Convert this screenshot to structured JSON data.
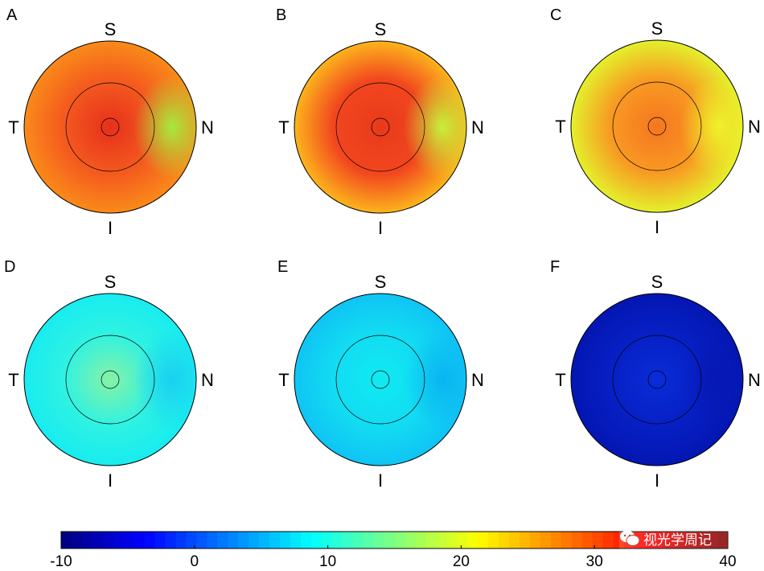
{
  "chart_data": [
    {
      "type": "heatmap",
      "panel": "A",
      "orientation_labels": {
        "top": "S",
        "left": "T",
        "right": "N",
        "bottom": "I"
      },
      "colors": {
        "center": "#e6301c",
        "mid": "#f45a1e",
        "nasal": "#a7ea3c",
        "edge": "#fa8a1a"
      }
    },
    {
      "type": "heatmap",
      "panel": "B",
      "orientation_labels": {
        "top": "S",
        "left": "T",
        "right": "N",
        "bottom": "I"
      },
      "colors": {
        "center": "#e83a1c",
        "mid": "#f2461e",
        "nasal": "#c6f03a",
        "edge": "#fcb41c"
      }
    },
    {
      "type": "heatmap",
      "panel": "C",
      "orientation_labels": {
        "top": "S",
        "left": "T",
        "right": "N",
        "bottom": "I"
      },
      "colors": {
        "center": "#f67620",
        "mid": "#f89a22",
        "nasal": "#eef22a",
        "edge": "#e4f02c"
      }
    },
    {
      "type": "heatmap",
      "panel": "D",
      "orientation_labels": {
        "top": "S",
        "left": "T",
        "right": "N",
        "bottom": "I"
      },
      "colors": {
        "center": "#86f2a6",
        "mid": "#2ef2e2",
        "nasal": "#1ad0f2",
        "edge": "#18ecf0"
      }
    },
    {
      "type": "heatmap",
      "panel": "E",
      "orientation_labels": {
        "top": "S",
        "left": "T",
        "right": "N",
        "bottom": "I"
      },
      "colors": {
        "center": "#10eaf2",
        "mid": "#12dcf2",
        "nasal": "#0ab4f2",
        "edge": "#10c4f4"
      }
    },
    {
      "type": "heatmap",
      "panel": "F",
      "orientation_labels": {
        "top": "S",
        "left": "T",
        "right": "N",
        "bottom": "I"
      },
      "colors": {
        "center": "#0a2cd8",
        "mid": "#0620c4",
        "nasal": "#0618b4",
        "edge": "#0416b2"
      }
    }
  ],
  "colorbar": {
    "min": -10,
    "max": 40,
    "tick_values": [
      -10,
      0,
      10,
      20,
      30,
      40
    ],
    "tick_labels": [
      "-10",
      "0",
      "10",
      "20",
      "30",
      "40"
    ],
    "colormap": "jet"
  },
  "watermark": {
    "text": "视光学周记"
  }
}
